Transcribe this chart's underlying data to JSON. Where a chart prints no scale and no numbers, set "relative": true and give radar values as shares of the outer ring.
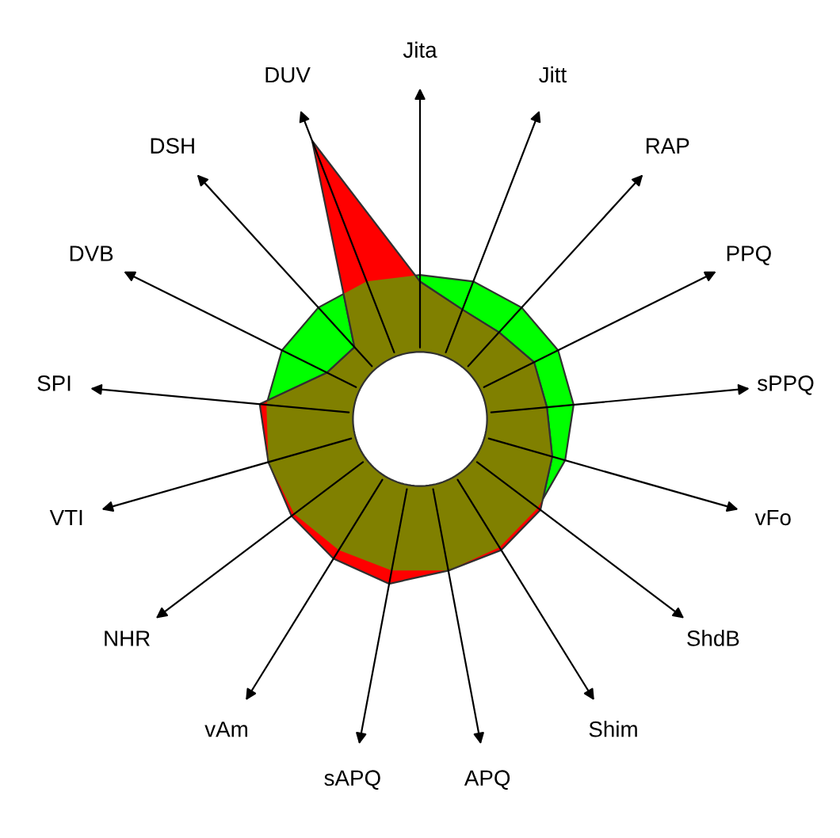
{
  "chart_data": {
    "type": "radar",
    "relative": true,
    "categories": [
      "Jita",
      "Jitt",
      "RAP",
      "PPQ",
      "sPPQ",
      "vFo",
      "ShdB",
      "Shim",
      "APQ",
      "sAPQ",
      "vAm",
      "NHR",
      "VTI",
      "SPI",
      "DVB",
      "DSH",
      "DUV"
    ],
    "series": [
      {
        "color": "#00ff00",
        "values": [
          0.43,
          0.44,
          0.45,
          0.46,
          0.46,
          0.45,
          0.44,
          0.45,
          0.46,
          0.46,
          0.46,
          0.47,
          0.47,
          0.46,
          0.46,
          0.45,
          0.44
        ]
      },
      {
        "color": "#ff0000",
        "values": [
          0.41,
          0.35,
          0.35,
          0.38,
          0.38,
          0.41,
          0.45,
          0.46,
          0.46,
          0.5,
          0.49,
          0.48,
          0.47,
          0.48,
          0.31,
          0.29,
          0.89
        ]
      }
    ]
  }
}
